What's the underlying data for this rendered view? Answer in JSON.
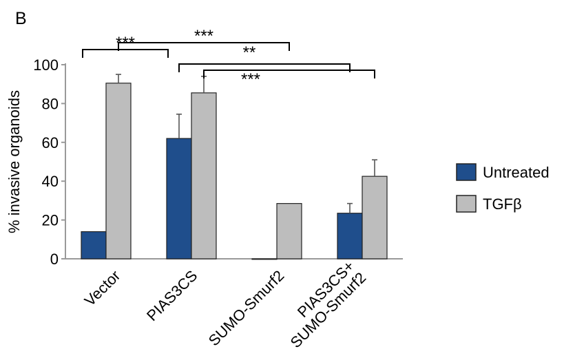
{
  "panel_label": "B",
  "chart_data": {
    "type": "bar",
    "title": "",
    "xlabel": "",
    "ylabel": "% invasive organoids",
    "ylim": [
      0,
      100
    ],
    "yticks": [
      0,
      20,
      40,
      60,
      80,
      100
    ],
    "grid": false,
    "legend_position": "right",
    "categories": [
      [
        "Vector"
      ],
      [
        "PIAS3CS"
      ],
      [
        "SUMO-Smurf2"
      ],
      [
        "PIAS3CS+",
        "SUMO-Smurf2"
      ]
    ],
    "series": [
      {
        "name": "Untreated",
        "color": "#1f4e8c",
        "values": [
          14,
          62,
          0,
          23.5
        ],
        "errors": [
          0,
          12.5,
          0,
          5
        ]
      },
      {
        "name": "TGFβ",
        "color": "#bdbdbd",
        "values": [
          90.5,
          85.5,
          28.5,
          42.5
        ],
        "errors": [
          4.5,
          8.5,
          0,
          8.5
        ]
      }
    ],
    "significance": [
      {
        "from": [
          0,
          0
        ],
        "to": [
          1,
          0
        ],
        "label": "***"
      },
      {
        "from": [
          0,
          1
        ],
        "to": [
          2,
          1
        ],
        "label": "***"
      },
      {
        "from": [
          1,
          0
        ],
        "to": [
          3,
          0
        ],
        "label": "**"
      },
      {
        "from": [
          1,
          1
        ],
        "to": [
          3,
          1
        ],
        "label": "***"
      }
    ]
  }
}
